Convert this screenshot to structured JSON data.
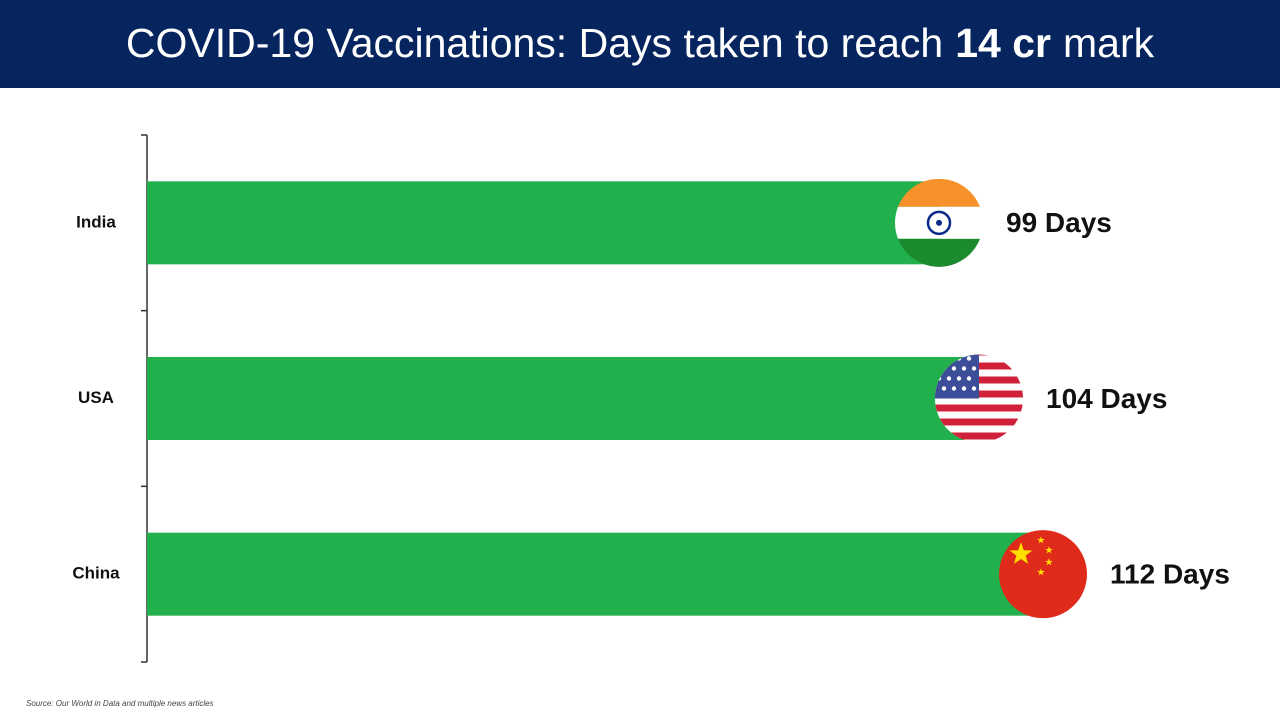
{
  "chart_data": {
    "type": "bar",
    "orientation": "horizontal",
    "title": [
      "COVID-19 Vaccinations: Days taken to reach",
      "14 cr",
      "mark"
    ],
    "categories": [
      "India",
      "USA",
      "China"
    ],
    "values": [
      99,
      104,
      112
    ],
    "value_labels": [
      "99 Days",
      "104 Days",
      "112 Days"
    ],
    "color": "#21b04b",
    "source": "Source: Our World in Data and multiple news articles"
  }
}
